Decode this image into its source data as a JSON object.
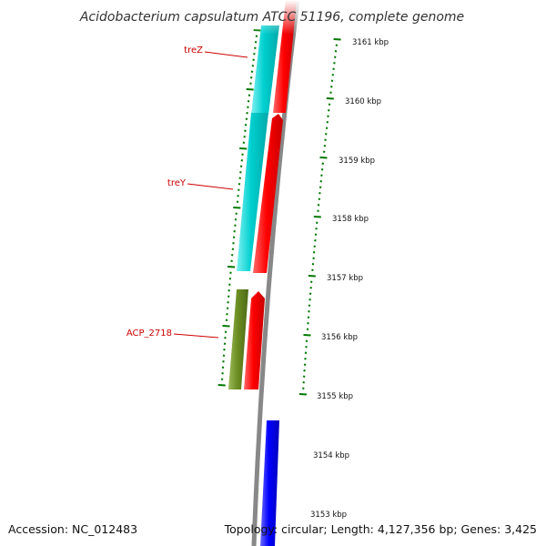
{
  "title": "Acidobacterium capsulatum ATCC 51196, complete genome",
  "footer": {
    "accession": "Accession: NC_012483",
    "topology": "Topology: circular; Length: 4,127,356 bp; Genes: 3,425"
  },
  "scale_labels": [
    "3161 kbp",
    "3160 kbp",
    "3159 kbp",
    "3158 kbp",
    "3157 kbp",
    "3156 kbp",
    "3155 kbp",
    "3154 kbp",
    "3153 kbp"
  ],
  "genes": [
    {
      "label": "treZ",
      "color": "#00cccc",
      "strand": "reverse"
    },
    {
      "label": "treY",
      "color": "#00cccc",
      "strand": "reverse"
    },
    {
      "label": "ACP_2718",
      "color": "#6b8e23",
      "strand": "reverse"
    }
  ],
  "colors": {
    "forward_cds": "#ff0000",
    "other_feature": "#0000ff",
    "backbone": "#888888",
    "tick": "#007700",
    "label": "#cc0000"
  }
}
